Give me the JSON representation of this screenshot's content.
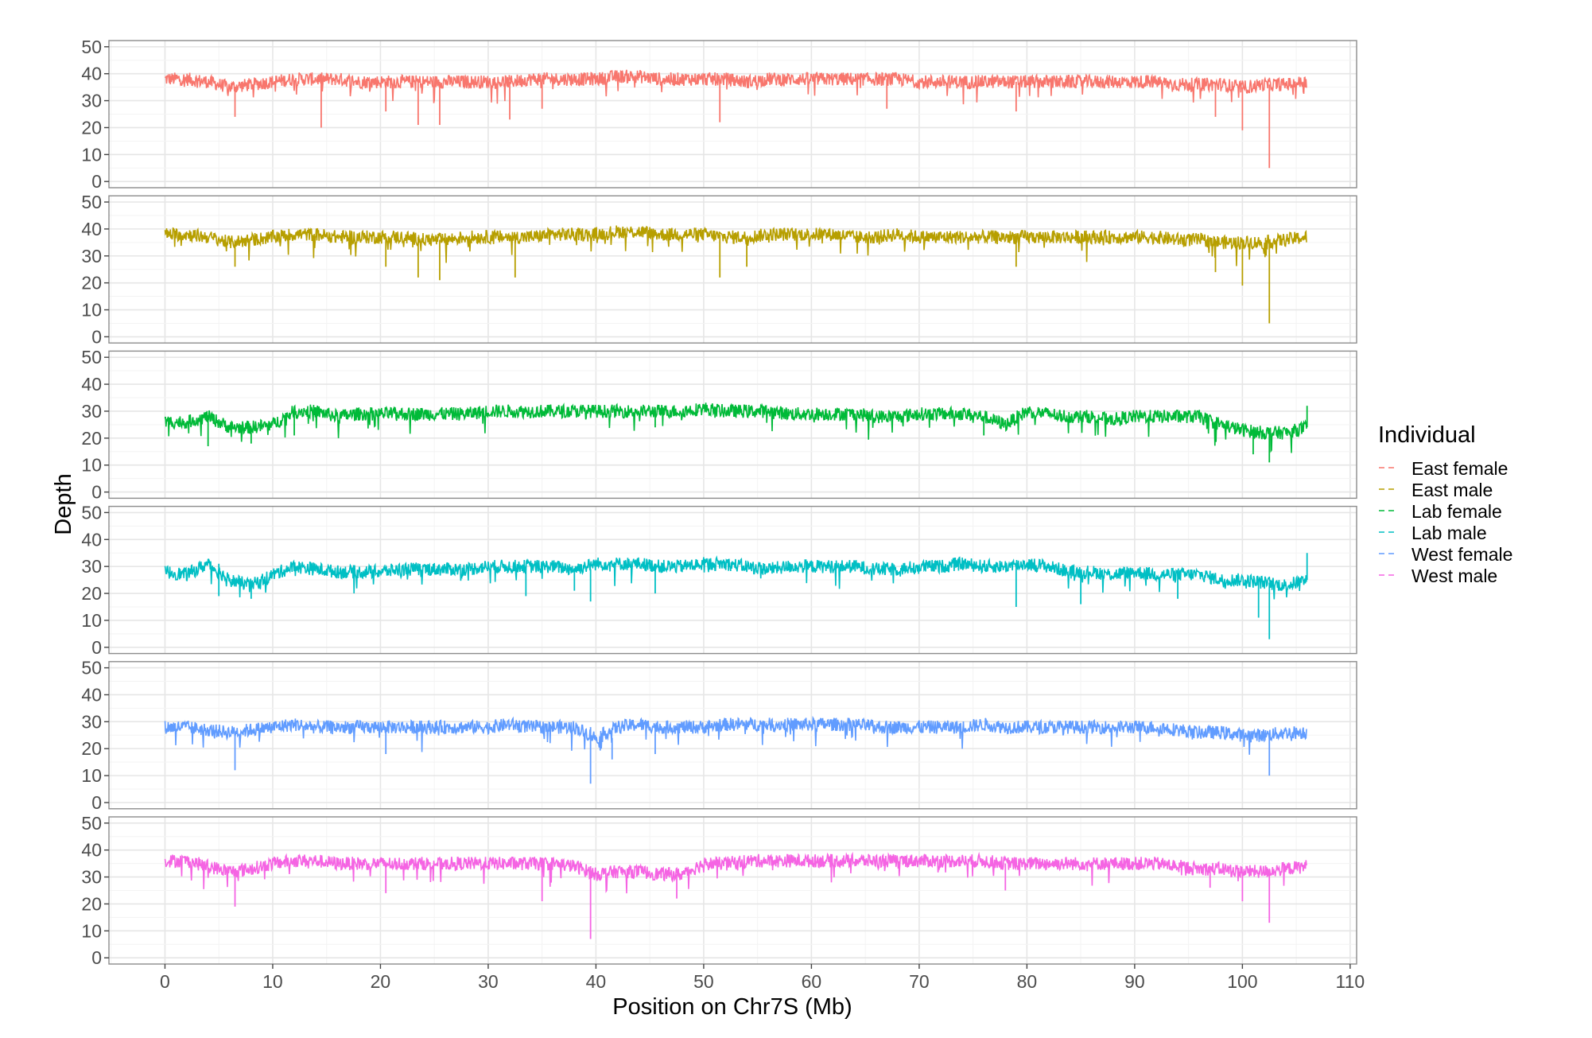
{
  "chart_data": {
    "type": "line",
    "xlabel": "Position on Chr7S (Mb)",
    "ylabel": "Depth",
    "xlim": [
      -5.2,
      110.6
    ],
    "ylim": [
      -2.3,
      52.3
    ],
    "x_ticks": [
      0,
      10,
      20,
      30,
      40,
      50,
      60,
      70,
      80,
      90,
      100,
      110
    ],
    "y_ticks": [
      0,
      10,
      20,
      30,
      40,
      50
    ],
    "grid": true,
    "facets": "one panel per individual, stacked vertically",
    "legend": {
      "title": "Individual",
      "placement": "right"
    },
    "x": [
      0,
      2,
      4,
      6,
      8,
      10,
      12,
      14,
      16,
      18,
      20,
      22,
      24,
      26,
      28,
      30,
      32,
      34,
      36,
      38,
      40,
      42,
      44,
      46,
      48,
      50,
      52,
      54,
      56,
      58,
      60,
      62,
      64,
      66,
      68,
      70,
      72,
      74,
      76,
      78,
      80,
      82,
      84,
      86,
      88,
      90,
      92,
      94,
      96,
      98,
      100,
      102,
      104,
      106
    ],
    "series": [
      {
        "name": "East female",
        "color": "#F8766D",
        "values": [
          38,
          38,
          37,
          35,
          36,
          37,
          38,
          38,
          38,
          37,
          37,
          37,
          37,
          37,
          37,
          37,
          37,
          38,
          38,
          38,
          38,
          39,
          39,
          38,
          38,
          38,
          38,
          37,
          38,
          38,
          38,
          38,
          38,
          38,
          38,
          37,
          37,
          37,
          37,
          37,
          37,
          37,
          37,
          37,
          37,
          37,
          37,
          36,
          36,
          36,
          35,
          36,
          36,
          37
        ],
        "dips": [
          [
            6.5,
            24
          ],
          [
            14.5,
            20
          ],
          [
            20.5,
            26
          ],
          [
            23.5,
            21
          ],
          [
            25.5,
            21
          ],
          [
            32,
            23
          ],
          [
            35,
            27
          ],
          [
            51.5,
            22
          ],
          [
            67,
            27
          ],
          [
            79,
            26
          ],
          [
            97.5,
            24
          ],
          [
            100,
            19
          ],
          [
            102.5,
            5
          ]
        ]
      },
      {
        "name": "East male",
        "color": "#B79F00",
        "values": [
          38,
          38,
          37,
          35,
          36,
          37,
          38,
          38,
          37,
          37,
          37,
          37,
          36,
          36,
          37,
          37,
          37,
          37,
          38,
          38,
          38,
          39,
          39,
          38,
          38,
          38,
          37,
          37,
          38,
          38,
          38,
          38,
          37,
          37,
          38,
          37,
          37,
          37,
          37,
          37,
          37,
          37,
          37,
          37,
          37,
          37,
          37,
          36,
          36,
          35,
          35,
          35,
          36,
          37
        ],
        "dips": [
          [
            6.5,
            26
          ],
          [
            20.5,
            26
          ],
          [
            23.5,
            22
          ],
          [
            25.5,
            21
          ],
          [
            32.5,
            22
          ],
          [
            51.5,
            22
          ],
          [
            54,
            26
          ],
          [
            79,
            26
          ],
          [
            97.5,
            24
          ],
          [
            100,
            19
          ],
          [
            102.5,
            5
          ]
        ]
      },
      {
        "name": "Lab female",
        "color": "#00BA38",
        "values": [
          26,
          26,
          28,
          24,
          24,
          25,
          30,
          30,
          28,
          29,
          29,
          29,
          29,
          29,
          29,
          30,
          30,
          30,
          30,
          30,
          30,
          30,
          30,
          30,
          30,
          31,
          30,
          30,
          30,
          29,
          29,
          29,
          29,
          28,
          28,
          29,
          29,
          29,
          28,
          25,
          30,
          29,
          28,
          28,
          27,
          28,
          28,
          28,
          28,
          25,
          23,
          22,
          22,
          24
        ],
        "dips": [
          [
            4,
            17
          ],
          [
            8,
            18
          ],
          [
            12,
            21
          ],
          [
            45.5,
            24
          ],
          [
            76,
            21
          ],
          [
            101,
            14
          ],
          [
            102.5,
            11
          ],
          [
            106,
            32
          ]
        ]
      },
      {
        "name": "Lab male",
        "color": "#00BFC4",
        "values": [
          28,
          27,
          31,
          25,
          23,
          27,
          30,
          29,
          28,
          28,
          28,
          29,
          29,
          29,
          29,
          30,
          30,
          30,
          30,
          29,
          31,
          31,
          31,
          30,
          30,
          31,
          31,
          30,
          29,
          30,
          30,
          30,
          30,
          29,
          29,
          30,
          30,
          31,
          30,
          30,
          31,
          30,
          28,
          28,
          27,
          28,
          27,
          27,
          27,
          25,
          25,
          24,
          23,
          25
        ],
        "dips": [
          [
            5,
            19
          ],
          [
            8,
            18
          ],
          [
            33.5,
            19
          ],
          [
            38,
            21
          ],
          [
            39.5,
            17
          ],
          [
            45.5,
            20
          ],
          [
            79,
            15
          ],
          [
            85,
            16
          ],
          [
            94,
            18
          ],
          [
            101.5,
            11
          ],
          [
            102.5,
            3
          ],
          [
            106,
            35
          ]
        ]
      },
      {
        "name": "West female",
        "color": "#619CFF",
        "values": [
          28,
          28,
          27,
          26,
          27,
          28,
          29,
          28,
          28,
          28,
          28,
          28,
          28,
          28,
          28,
          28,
          29,
          28,
          28,
          28,
          24,
          28,
          29,
          28,
          28,
          28,
          29,
          29,
          29,
          29,
          29,
          29,
          29,
          28,
          28,
          28,
          28,
          28,
          29,
          28,
          28,
          28,
          28,
          28,
          28,
          28,
          28,
          27,
          26,
          26,
          25,
          25,
          26,
          26
        ],
        "dips": [
          [
            6.5,
            12
          ],
          [
            20.5,
            18
          ],
          [
            39.5,
            7
          ],
          [
            41.5,
            16
          ],
          [
            45.5,
            18
          ],
          [
            102.5,
            10
          ]
        ]
      },
      {
        "name": "West male",
        "color": "#F564E3",
        "values": [
          36,
          36,
          34,
          32,
          33,
          35,
          36,
          36,
          35,
          35,
          35,
          35,
          35,
          35,
          35,
          35,
          35,
          35,
          35,
          34,
          31,
          32,
          32,
          31,
          31,
          35,
          35,
          36,
          36,
          36,
          36,
          36,
          36,
          36,
          36,
          36,
          36,
          36,
          36,
          35,
          35,
          35,
          35,
          35,
          35,
          35,
          35,
          34,
          33,
          33,
          32,
          32,
          33,
          34
        ],
        "dips": [
          [
            6.5,
            19
          ],
          [
            20.5,
            24
          ],
          [
            35,
            21
          ],
          [
            39.5,
            7
          ],
          [
            47.5,
            22
          ],
          [
            78,
            25
          ],
          [
            97,
            26
          ],
          [
            100,
            21
          ],
          [
            102.5,
            13
          ]
        ]
      }
    ]
  }
}
